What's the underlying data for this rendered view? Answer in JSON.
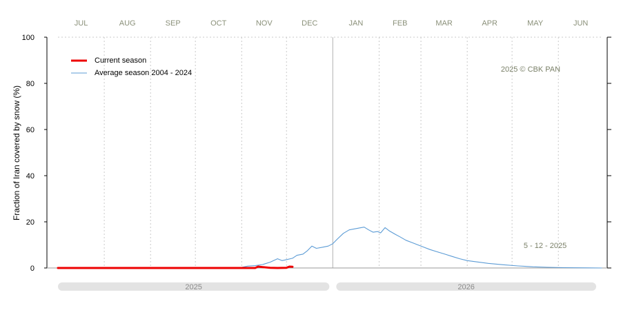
{
  "chart_data": {
    "type": "line",
    "title": "",
    "xlabel": "",
    "ylabel": "Fraction of  Iran  covered by snow (%)",
    "ylim": [
      0,
      100
    ],
    "yticks": [
      0,
      20,
      40,
      60,
      80,
      100
    ],
    "xlim": [
      "2025-07-01",
      "2026-06-30"
    ],
    "month_labels": [
      "JUL",
      "AUG",
      "SEP",
      "OCT",
      "NOV",
      "DEC",
      "JAN",
      "FEB",
      "MAR",
      "APR",
      "MAY",
      "JUN"
    ],
    "year_bands": [
      "2025",
      "2026"
    ],
    "grid": true,
    "legend_position": "top-left",
    "copyright": "2025  © CBK PAN",
    "date_note": "5 - 12 - 2025",
    "series": [
      {
        "name": "Current season",
        "color": "#ee0000",
        "points": [
          [
            "2025-07-01",
            0
          ],
          [
            "2025-09-01",
            0
          ],
          [
            "2025-10-15",
            0
          ],
          [
            "2025-11-10",
            0
          ],
          [
            "2025-11-12",
            0.6
          ],
          [
            "2025-11-15",
            0.4
          ],
          [
            "2025-11-20",
            0.1
          ],
          [
            "2025-11-25",
            0.0
          ],
          [
            "2025-12-01",
            0.1
          ],
          [
            "2025-12-03",
            0.6
          ],
          [
            "2025-12-05",
            0.5
          ]
        ]
      },
      {
        "name": "Average season 2004 - 2024",
        "color": "#5b9bd5",
        "points": [
          [
            "2025-07-01",
            0
          ],
          [
            "2025-10-25",
            0
          ],
          [
            "2025-11-01",
            0.3
          ],
          [
            "2025-11-05",
            0.8
          ],
          [
            "2025-11-10",
            1.0
          ],
          [
            "2025-11-15",
            1.5
          ],
          [
            "2025-11-20",
            2.5
          ],
          [
            "2025-11-25",
            4.0
          ],
          [
            "2025-11-28",
            3.2
          ],
          [
            "2025-12-01",
            3.6
          ],
          [
            "2025-12-05",
            4.2
          ],
          [
            "2025-12-08",
            5.5
          ],
          [
            "2025-12-12",
            6.0
          ],
          [
            "2025-12-15",
            7.5
          ],
          [
            "2025-12-18",
            9.5
          ],
          [
            "2025-12-21",
            8.5
          ],
          [
            "2025-12-25",
            9.0
          ],
          [
            "2025-12-29",
            9.5
          ],
          [
            "2026-01-01",
            10.5
          ],
          [
            "2026-01-04",
            12.5
          ],
          [
            "2026-01-08",
            15.0
          ],
          [
            "2026-01-12",
            16.5
          ],
          [
            "2026-01-16",
            17.0
          ],
          [
            "2026-01-20",
            17.5
          ],
          [
            "2026-01-22",
            17.7
          ],
          [
            "2026-01-25",
            16.5
          ],
          [
            "2026-01-28",
            15.5
          ],
          [
            "2026-01-31",
            15.8
          ],
          [
            "2026-02-02",
            15.2
          ],
          [
            "2026-02-05",
            17.5
          ],
          [
            "2026-02-08",
            16.0
          ],
          [
            "2026-02-12",
            14.5
          ],
          [
            "2026-02-15",
            13.5
          ],
          [
            "2026-02-19",
            12.0
          ],
          [
            "2026-02-23",
            11.0
          ],
          [
            "2026-02-27",
            10.0
          ],
          [
            "2026-03-03",
            9.0
          ],
          [
            "2026-03-07",
            8.0
          ],
          [
            "2026-03-12",
            7.0
          ],
          [
            "2026-03-17",
            6.0
          ],
          [
            "2026-03-22",
            5.0
          ],
          [
            "2026-03-27",
            4.0
          ],
          [
            "2026-04-01",
            3.2
          ],
          [
            "2026-04-08",
            2.6
          ],
          [
            "2026-04-15",
            2.0
          ],
          [
            "2026-04-25",
            1.4
          ],
          [
            "2026-05-05",
            0.9
          ],
          [
            "2026-05-15",
            0.5
          ],
          [
            "2026-05-25",
            0.3
          ],
          [
            "2026-06-05",
            0.15
          ],
          [
            "2026-06-20",
            0.05
          ],
          [
            "2026-06-30",
            0
          ]
        ]
      }
    ]
  }
}
